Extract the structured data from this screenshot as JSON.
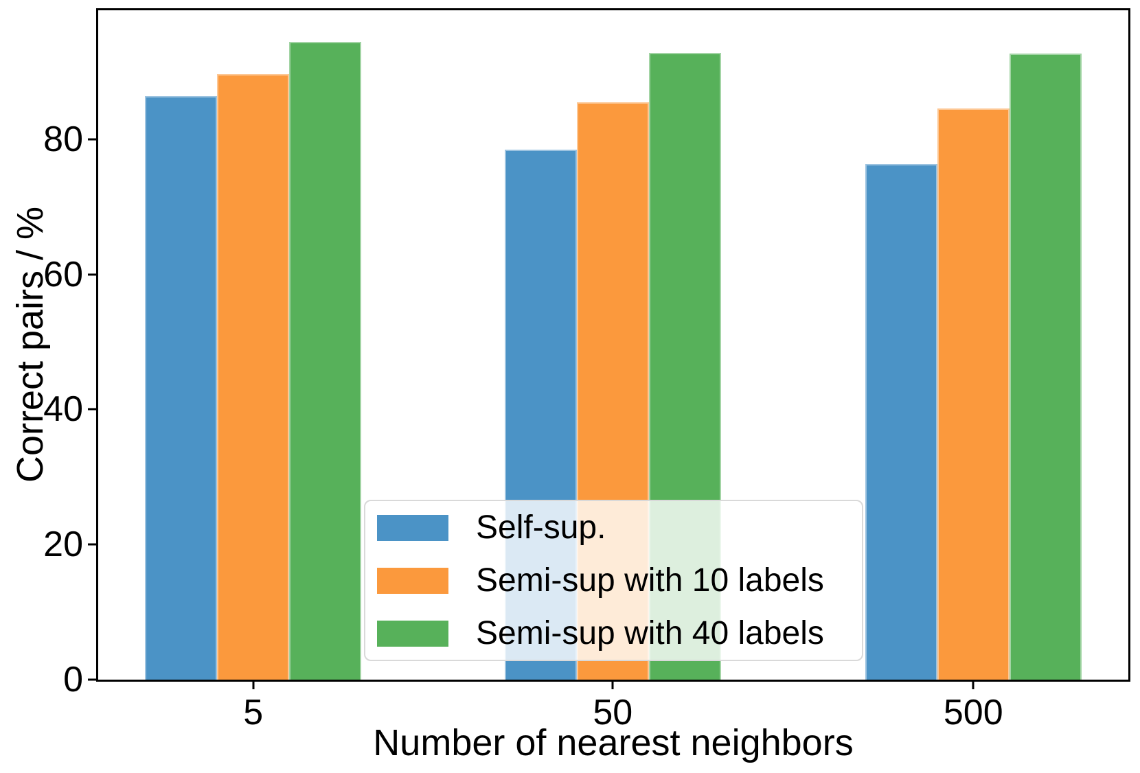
{
  "chart_data": {
    "type": "bar",
    "title": "",
    "xlabel": "Number of nearest neighbors",
    "ylabel": "Correct pairs / %",
    "categories": [
      "5",
      "50",
      "500"
    ],
    "series": [
      {
        "name": "Self-sup.",
        "color": "#4B93C6",
        "values": [
          86.4,
          78.5,
          76.3
        ]
      },
      {
        "name": "Semi-sup with 10 labels",
        "color": "#FB993D",
        "values": [
          89.6,
          85.5,
          84.6
        ]
      },
      {
        "name": "Semi-sup with 40 labels",
        "color": "#57B15A",
        "values": [
          94.4,
          92.8,
          92.7
        ]
      }
    ],
    "yticks": [
      0,
      20,
      40,
      60,
      80
    ],
    "ylim": [
      0,
      99.1
    ],
    "grid": false,
    "legend_position": "lower center"
  }
}
